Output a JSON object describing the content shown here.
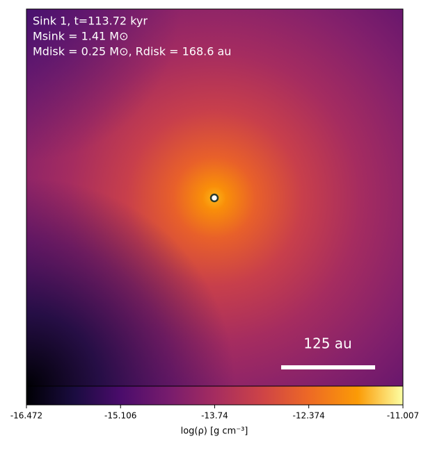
{
  "chart_data": {
    "type": "density-map",
    "annotations": [
      "Sink 1, t=113.72 kyr",
      "Msink = 1.41 M⊙",
      "Mdisk = 0.25 M⊙, Rdisk = 168.6 au"
    ],
    "scale_bar_label": "125 au",
    "colorbar": {
      "label": "log(ρ) [g cm⁻³]",
      "lim": [
        -16.472,
        -11.007
      ],
      "ticks": [
        -16.472,
        -15.106,
        -13.74,
        -12.374,
        -11.007
      ],
      "colormap": "inferno"
    }
  }
}
